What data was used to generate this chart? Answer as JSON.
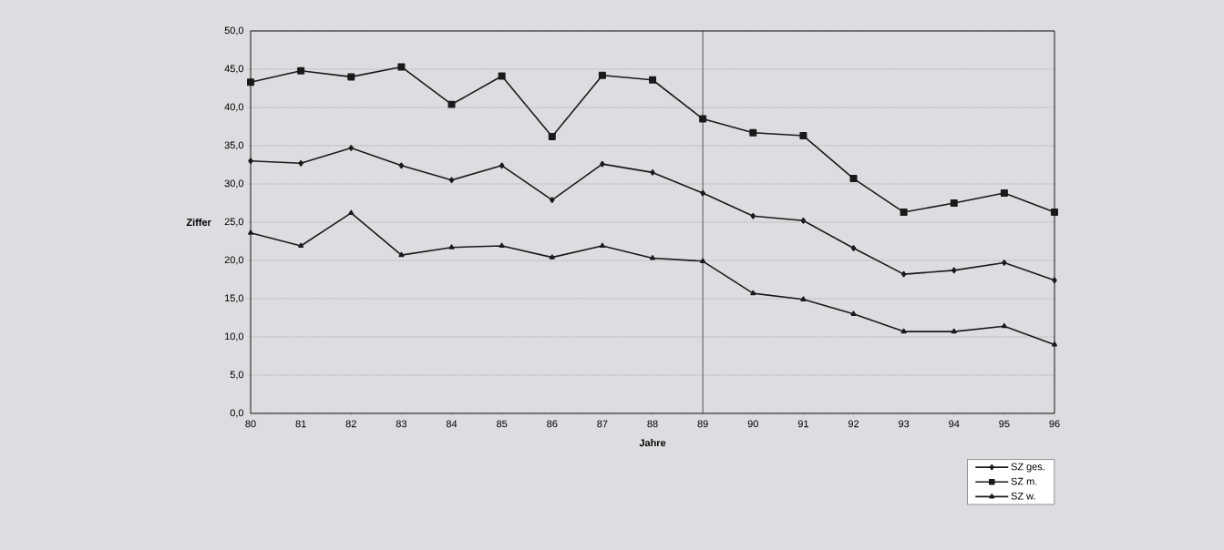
{
  "chart_data": {
    "type": "line",
    "xlabel": "Jahre",
    "ylabel": "Ziffer",
    "categories": [
      "80",
      "81",
      "82",
      "83",
      "84",
      "85",
      "86",
      "87",
      "88",
      "89",
      "90",
      "91",
      "92",
      "93",
      "94",
      "95",
      "96"
    ],
    "series": [
      {
        "name": "SZ ges.",
        "color": "#1a1a1a",
        "marker": "diamond",
        "values": [
          33.0,
          32.7,
          34.7,
          32.4,
          30.5,
          32.4,
          27.9,
          32.6,
          31.5,
          28.8,
          25.8,
          25.2,
          21.6,
          18.2,
          18.7,
          19.7,
          17.4
        ]
      },
      {
        "name": "SZ m.",
        "color": "#1a1a1a",
        "marker": "square",
        "values": [
          43.3,
          44.8,
          44.0,
          45.3,
          40.4,
          44.1,
          36.2,
          44.2,
          43.6,
          38.5,
          36.7,
          36.3,
          30.7,
          26.3,
          27.5,
          28.8,
          26.3
        ]
      },
      {
        "name": "SZ w.",
        "color": "#1a1a1a",
        "marker": "triangle",
        "values": [
          23.6,
          21.9,
          26.2,
          20.7,
          21.7,
          21.9,
          20.4,
          21.9,
          20.3,
          19.9,
          15.7,
          14.9,
          13.0,
          10.7,
          10.7,
          11.4,
          9.0
        ]
      }
    ],
    "ylim": [
      0,
      50
    ],
    "yticks": [
      {
        "value": 0,
        "label": "0,0"
      },
      {
        "value": 5,
        "label": "5,0"
      },
      {
        "value": 10,
        "label": "10,0"
      },
      {
        "value": 15,
        "label": "15,0"
      },
      {
        "value": 20,
        "label": "20,0"
      },
      {
        "value": 25,
        "label": "25,0"
      },
      {
        "value": 30,
        "label": "30,0"
      },
      {
        "value": 35,
        "label": "35,0"
      },
      {
        "value": 40,
        "label": "40,0"
      },
      {
        "value": 45,
        "label": "45,0"
      },
      {
        "value": 50,
        "label": "50,0"
      }
    ],
    "ref_lines": [
      {
        "axis": "x",
        "value": "89",
        "color": "#333333"
      }
    ],
    "grid": "y",
    "legend": "bottom right",
    "line_style": "solid"
  }
}
